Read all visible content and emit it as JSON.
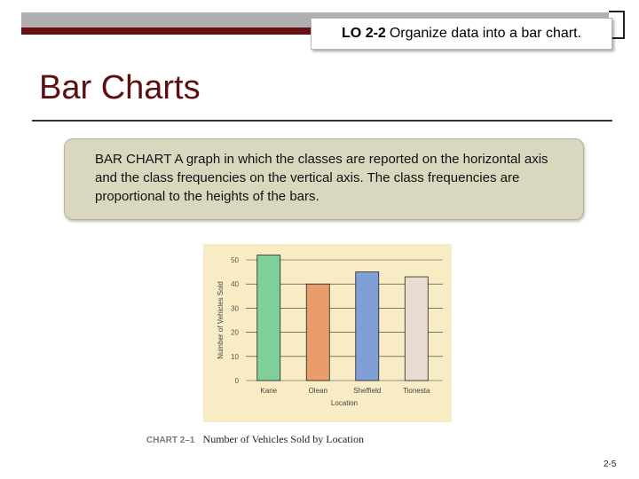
{
  "header": {
    "lo_code": "LO 2-2",
    "lo_text": "Organize data into a bar chart."
  },
  "slide": {
    "title": "Bar Charts",
    "definition": "BAR CHART A graph in which the classes are reported on the horizontal axis and the class frequencies on the vertical axis. The class frequencies are proportional to the heights of the bars."
  },
  "figure": {
    "caption_number": "CHART 2–1",
    "caption_text": "Number of Vehicles Sold by Location"
  },
  "page_number": "2-5",
  "colors": {
    "maroon": "#6b0f10",
    "chart_bg": "#f8ecc4",
    "definition_bg": "#d9d8bf"
  },
  "chart_data": {
    "type": "bar",
    "categories": [
      "Kane",
      "Olean",
      "Sheffield",
      "Tionesta"
    ],
    "values": [
      52,
      40,
      45,
      43
    ],
    "bar_colors": [
      "#7fcf9b",
      "#e99c6c",
      "#7f9fd6",
      "#e9dcd0"
    ],
    "xlabel": "Location",
    "ylabel": "Number of Vehicles Sold",
    "ylim": [
      0,
      50
    ],
    "yticks": [
      0,
      10,
      20,
      30,
      40,
      50
    ],
    "grid": true
  }
}
